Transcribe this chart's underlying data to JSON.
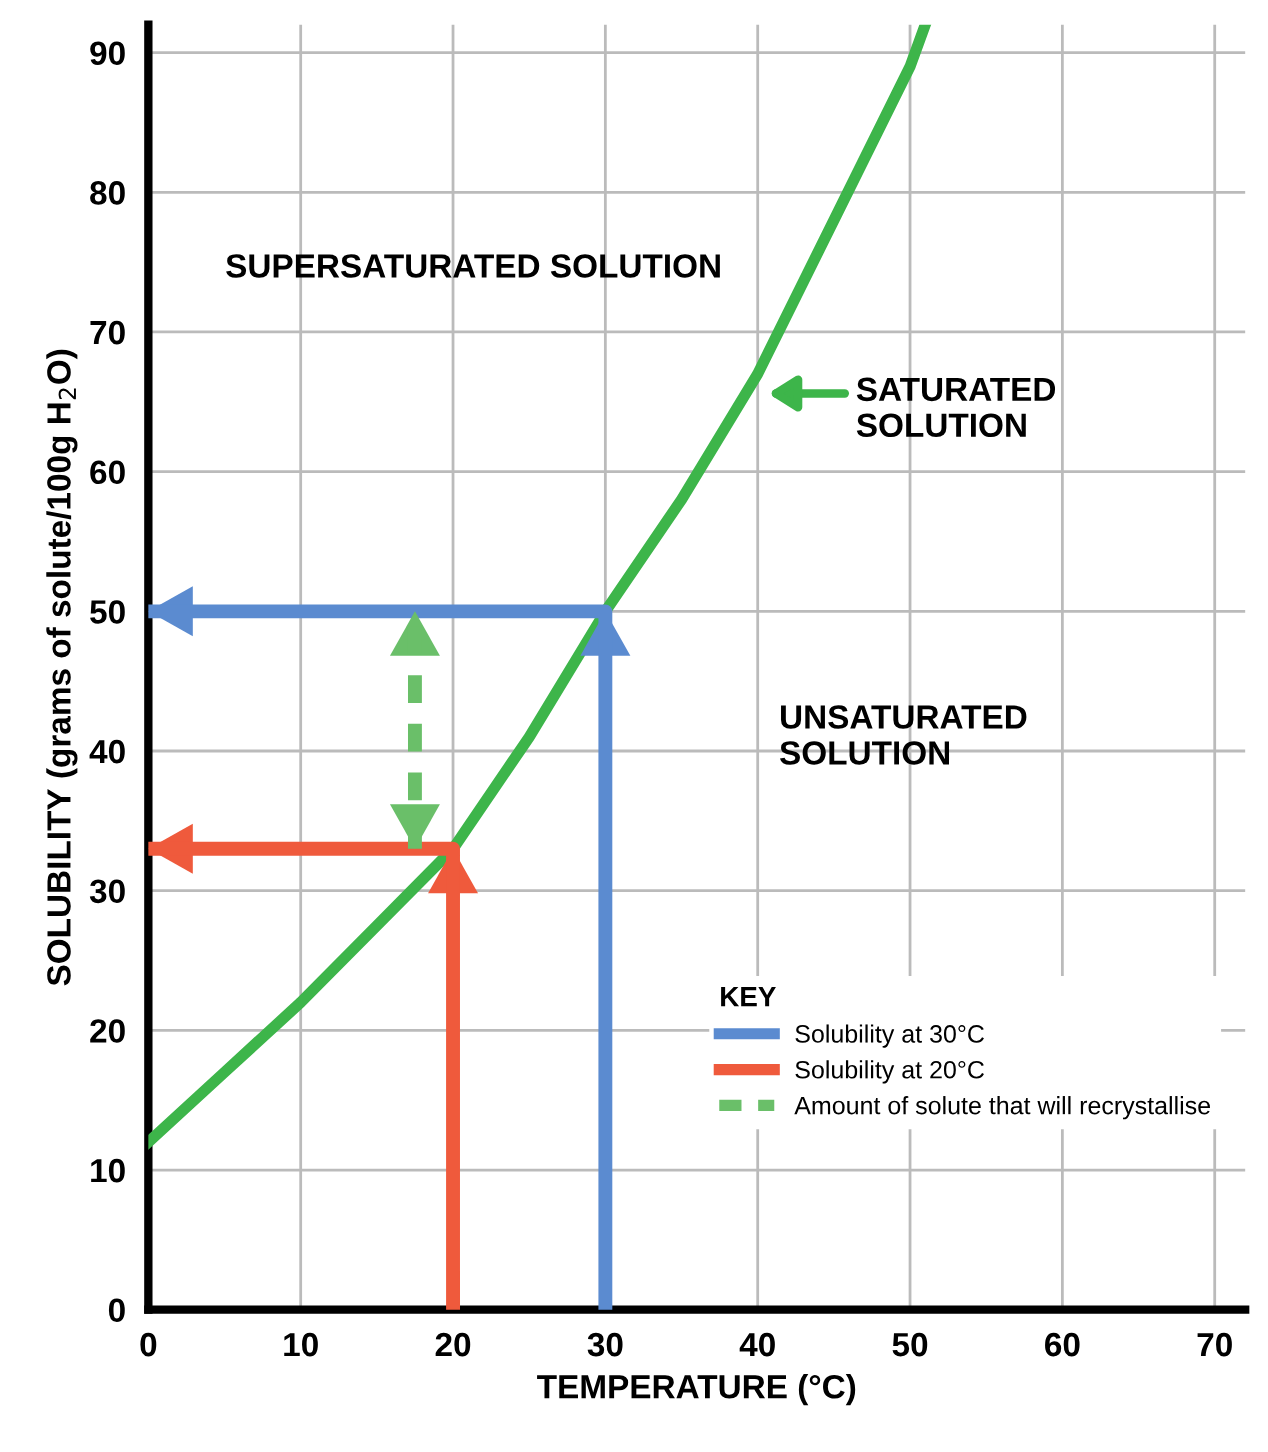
{
  "chart_data": {
    "type": "line",
    "xlabel": "TEMPERATURE (°C)",
    "ylabel": "SOLUBILITY (grams of solute/100g H$_{2}$O)",
    "legend_title": "KEY",
    "series": [
      {
        "type": "line",
        "x": [
          0,
          5,
          10,
          15,
          20,
          25,
          30,
          35,
          40,
          45,
          50,
          51
        ],
        "values": [
          12,
          17,
          22,
          27.5,
          33,
          41,
          50,
          58,
          67,
          78,
          89,
          92
        ],
        "color": "#3db54a"
      },
      {
        "name": "Solubility at 30°C",
        "x": [
          30,
          30,
          0
        ],
        "values": [
          0,
          50,
          50
        ],
        "color": "#5b8bd0"
      },
      {
        "name": "Solubility at 20°C",
        "x": [
          20,
          20,
          0
        ],
        "values": [
          0,
          33,
          33
        ],
        "color": "#ef5a3c"
      },
      {
        "name": "Amount of solute that will recrystallise",
        "x": [
          17.5,
          17.5
        ],
        "values": [
          33,
          50
        ],
        "color": "#6abf69",
        "line_style": "dashed"
      }
    ],
    "annotations": [
      {
        "text": "SUPERSATURATED SOLUTION"
      },
      "SATURATED\nSOLUTION",
      {
        "text": "UNSATURATED\nSOLUTION"
      }
    ],
    "xlim": [
      0,
      72
    ],
    "ylim": [
      0,
      92
    ],
    "xticks": [
      0,
      10,
      20,
      30,
      40,
      50,
      60,
      70
    ],
    "yticks": [
      0,
      10,
      20,
      30,
      40,
      50,
      60,
      70,
      80,
      90
    ],
    "grid": true,
    "legend": "right",
    "marker": "none"
  }
}
